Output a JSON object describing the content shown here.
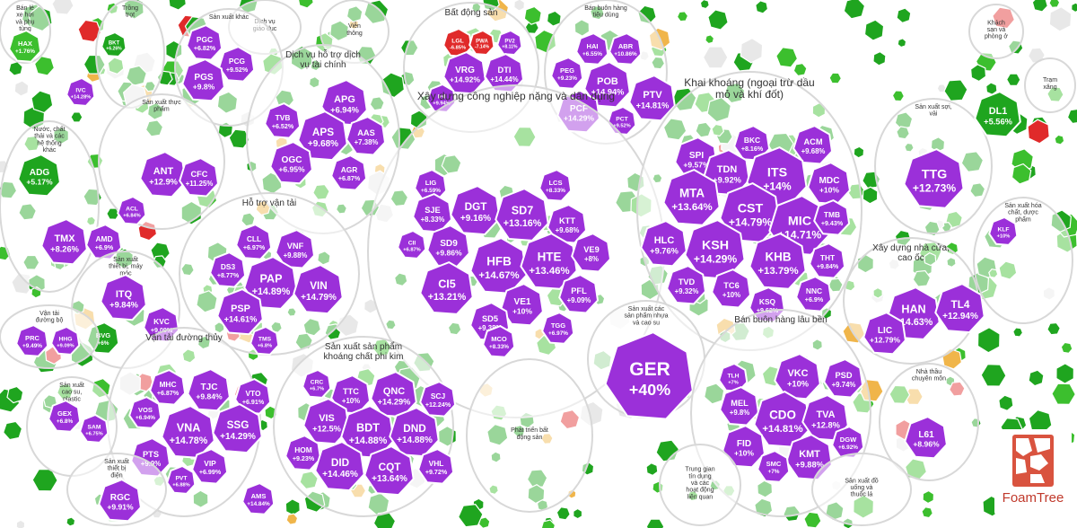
{
  "chart_data": {
    "type": "treemap",
    "title": "",
    "color_scale": {
      "purple": "#9b30d9",
      "green_strong": "#1fa51f",
      "green_mid": "#3cbf2e",
      "green_light": "#8fd16f",
      "gray": "#e8e8e8",
      "orange": "#f0b54a",
      "red": "#e02a2a",
      "group_bg": "#f4f4f4",
      "group_border": "#d8d8d8"
    },
    "groups": [
      {
        "name": "Bán lẻ xe hơi và phụ tùng",
        "stocks": [
          {
            "t": "HAX",
            "c": "+1.76%"
          }
        ]
      },
      {
        "name": "Dịch vụ giáo dục",
        "stocks": []
      },
      {
        "name": "Viễn thông",
        "stocks": []
      },
      {
        "name": "Bất động sản",
        "stocks": [
          {
            "t": "LGL",
            "c": "-6.85%"
          },
          {
            "t": "PWA",
            "c": "-7.14%"
          },
          {
            "t": "PV2",
            "c": "+8.11%"
          },
          {
            "t": "VRG",
            "c": "+14.92%"
          },
          {
            "t": "DTI",
            "c": "+14.44%"
          },
          {
            "t": "IHI",
            "c": "+9.94%"
          }
        ]
      },
      {
        "name": "Bán buôn hàng tiêu dùng",
        "stocks": [
          {
            "t": "HAI",
            "c": "+6.55%"
          },
          {
            "t": "ABR",
            "c": "+10.86%"
          },
          {
            "t": "PEG",
            "c": "+9.23%"
          },
          {
            "t": "POB",
            "c": "+14.94%"
          },
          {
            "t": "PTV",
            "c": "+14.81%"
          },
          {
            "t": "PCF",
            "c": "+14.29%"
          },
          {
            "t": "PCT",
            "c": "+9.52%"
          }
        ]
      },
      {
        "name": "Trồng trọt",
        "stocks": [
          {
            "t": "BKT",
            "c": "+6.26%"
          }
        ]
      },
      {
        "name": "Sản xuất khác",
        "stocks": [
          {
            "t": "PGC",
            "c": "+6.82%"
          },
          {
            "t": "PCG",
            "c": "+9.52%"
          },
          {
            "t": "PGS",
            "c": "+9.8%"
          },
          {
            "t": "IVC",
            "c": "+14.28%"
          }
        ]
      },
      {
        "name": "Sản xuất thực phẩm",
        "stocks": [
          {
            "t": "ANT",
            "c": "+12.9%"
          },
          {
            "t": "CFC",
            "c": "+11.25%"
          },
          {
            "t": "ACL",
            "c": "+6.84%"
          }
        ]
      },
      {
        "name": "Xây dựng công nghiệp nặng và dân dụng",
        "stocks": [
          {
            "t": "LIG",
            "c": "+6.59%"
          },
          {
            "t": "SJE",
            "c": "+8.33%"
          },
          {
            "t": "DGT",
            "c": "+9.16%"
          },
          {
            "t": "SD7",
            "c": "+13.16%"
          },
          {
            "t": "LCS",
            "c": "+8.33%"
          },
          {
            "t": "KTT",
            "c": "+9.68%"
          },
          {
            "t": "SD9",
            "c": "+9.86%"
          },
          {
            "t": "HFB",
            "c": "+14.67%"
          },
          {
            "t": "HTE",
            "c": "+13.46%"
          },
          {
            "t": "VE9",
            "c": "+8%"
          },
          {
            "t": "CI5",
            "c": "+13.21%"
          },
          {
            "t": "VE1",
            "c": "+10%"
          },
          {
            "t": "PFL",
            "c": "+9.09%"
          },
          {
            "t": "SD5",
            "c": "+9.38%"
          },
          {
            "t": "TGG",
            "c": "+6.97%"
          },
          {
            "t": "MCO",
            "c": "+8.33%"
          },
          {
            "t": "CII",
            "c": "+6.87%"
          }
        ]
      },
      {
        "name": "Khai khoáng (ngoại trừ dầu mỏ và khí đốt)",
        "stocks": [
          {
            "t": "SPI",
            "c": "+9.57%"
          },
          {
            "t": "BKC",
            "c": "+8.16%"
          },
          {
            "t": "ACM",
            "c": "+9.68%"
          },
          {
            "t": "TDN",
            "c": "+9.92%"
          },
          {
            "t": "ITS",
            "c": "+14%"
          },
          {
            "t": "MDC",
            "c": "+10%"
          },
          {
            "t": "MTA",
            "c": "+13.64%"
          },
          {
            "t": "CST",
            "c": "+14.79%"
          },
          {
            "t": "MIC",
            "c": "+14.71%"
          },
          {
            "t": "TMB",
            "c": "+9.43%"
          },
          {
            "t": "HLC",
            "c": "+9.76%"
          },
          {
            "t": "KSH",
            "c": "+14.29%"
          },
          {
            "t": "KHB",
            "c": "+13.79%"
          },
          {
            "t": "THT",
            "c": "+9.84%"
          },
          {
            "t": "TVD",
            "c": "+9.32%"
          },
          {
            "t": "TC6",
            "c": "+10%"
          },
          {
            "t": "KSQ",
            "c": "+9.62%"
          },
          {
            "t": "NNC",
            "c": "+6.9%"
          }
        ]
      },
      {
        "name": "Dịch vụ hỗ trợ dịch vụ tài chính",
        "stocks": [
          {
            "t": "APG",
            "c": "+6.94%"
          },
          {
            "t": "APS",
            "c": "+9.68%"
          },
          {
            "t": "OGC",
            "c": "+6.95%"
          },
          {
            "t": "AAS",
            "c": "+7.38%"
          },
          {
            "t": "AGR",
            "c": "+6.87%"
          },
          {
            "t": "TVB",
            "c": "+6.52%"
          }
        ]
      },
      {
        "name": "Hỗ trợ vận tải",
        "stocks": [
          {
            "t": "CLL",
            "c": "+6.97%"
          },
          {
            "t": "VNF",
            "c": "+9.88%"
          },
          {
            "t": "PAP",
            "c": "+14.89%"
          },
          {
            "t": "VIN",
            "c": "+14.79%"
          },
          {
            "t": "PSP",
            "c": "+14.61%"
          },
          {
            "t": "DS3",
            "c": "+8.77%"
          },
          {
            "t": "TMS",
            "c": "+6.8%"
          }
        ]
      },
      {
        "name": "Sản xuất sợi, vải",
        "stocks": [
          {
            "t": "TTG",
            "c": "+12.73%"
          },
          {
            "t": "DL1",
            "c": "+5.56%"
          }
        ]
      },
      {
        "name": "Trạm xăng",
        "stocks": []
      },
      {
        "name": "Nước, chất thải và các hệ thống khác",
        "stocks": [
          {
            "t": "ADG",
            "c": "+5.17%"
          },
          {
            "t": "TMX",
            "c": "+8.26%"
          },
          {
            "t": "AMD",
            "c": "+6.9%"
          }
        ]
      },
      {
        "name": "Sản xuất thiết bị, máy móc",
        "stocks": [
          {
            "t": "ITQ",
            "c": "+9.84%"
          },
          {
            "t": "KVC",
            "c": "+9.09%"
          },
          {
            "t": "BVG",
            "c": "+6%"
          }
        ]
      },
      {
        "name": "Xây dựng nhà cửa, cao ốc",
        "stocks": [
          {
            "t": "HAN",
            "c": "+14.63%"
          },
          {
            "t": "TL4",
            "c": "+12.94%"
          },
          {
            "t": "LIC",
            "c": "+12.79%"
          }
        ]
      },
      {
        "name": "Sản xuất hóa chất, dược phẩm",
        "stocks": [
          {
            "t": "KLF",
            "c": "+10%"
          }
        ]
      },
      {
        "name": "Vận tải đường bộ",
        "stocks": [
          {
            "t": "PRC",
            "c": "+9.49%"
          },
          {
            "t": "HHG",
            "c": "+9.09%"
          }
        ]
      },
      {
        "name": "Vận tải đường thủy",
        "stocks": [
          {
            "t": "MHC",
            "c": "+6.87%"
          },
          {
            "t": "TJC",
            "c": "+9.84%"
          },
          {
            "t": "VTO",
            "c": "+6.91%"
          },
          {
            "t": "VOS",
            "c": "+6.94%"
          },
          {
            "t": "VNA",
            "c": "+14.78%"
          },
          {
            "t": "SSG",
            "c": "+14.29%"
          },
          {
            "t": "PTS",
            "c": "+9.9%"
          },
          {
            "t": "VIP",
            "c": "+6.99%"
          },
          {
            "t": "PVT",
            "c": "+6.88%"
          }
        ]
      },
      {
        "name": "Sản xuất sản phẩm khoáng chất phi kim",
        "stocks": [
          {
            "t": "CRC",
            "c": "+6.7%"
          },
          {
            "t": "TTC",
            "c": "+10%"
          },
          {
            "t": "QNC",
            "c": "+14.29%"
          },
          {
            "t": "SCJ",
            "c": "+12.24%"
          },
          {
            "t": "VIS",
            "c": "+12.5%"
          },
          {
            "t": "BDT",
            "c": "+14.88%"
          },
          {
            "t": "DND",
            "c": "+14.88%"
          },
          {
            "t": "HOM",
            "c": "+9.23%"
          },
          {
            "t": "DID",
            "c": "+14.46%"
          },
          {
            "t": "CQT",
            "c": "+13.64%"
          },
          {
            "t": "VHL",
            "c": "+9.72%"
          }
        ]
      },
      {
        "name": "Phát triển bất động sản",
        "stocks": []
      },
      {
        "name": "Sản xuất các sản phẩm nhựa và cao su",
        "stocks": [
          {
            "t": "GER",
            "c": "+40%"
          }
        ]
      },
      {
        "name": "Bán buôn hàng lâu bền",
        "stocks": [
          {
            "t": "TLH",
            "c": "+7%"
          },
          {
            "t": "VKC",
            "c": "+10%"
          },
          {
            "t": "PSD",
            "c": "+9.74%"
          },
          {
            "t": "MEL",
            "c": "+9.8%"
          },
          {
            "t": "CDO",
            "c": "+14.81%"
          },
          {
            "t": "TVA",
            "c": "+12.8%"
          },
          {
            "t": "FID",
            "c": "+10%"
          },
          {
            "t": "KMT",
            "c": "+9.88%"
          },
          {
            "t": "SMC",
            "c": "+7%"
          },
          {
            "t": "DGW",
            "c": "+6.92%"
          }
        ]
      },
      {
        "name": "Nhà thầu chuyên môn",
        "stocks": [
          {
            "t": "L61",
            "c": "+8.96%"
          }
        ]
      },
      {
        "name": "Sản xuất đồ uống và thuốc lá",
        "stocks": []
      },
      {
        "name": "Trung gian tín dụng và các hoạt động liên quan",
        "stocks": []
      },
      {
        "name": "Sản xuất cao su, plastic",
        "stocks": [
          {
            "t": "GEX",
            "c": "+6.8%"
          },
          {
            "t": "SAM",
            "c": "+6.75%"
          }
        ]
      },
      {
        "name": "Sản xuất thiết bị điện",
        "stocks": [
          {
            "t": "RGC",
            "c": "+9.91%"
          },
          {
            "t": "AMS",
            "c": "+14.84%"
          }
        ]
      },
      {
        "name": "Khách sạn và phòng ở",
        "stocks": []
      }
    ]
  },
  "logo": {
    "text": "FoamTree"
  }
}
